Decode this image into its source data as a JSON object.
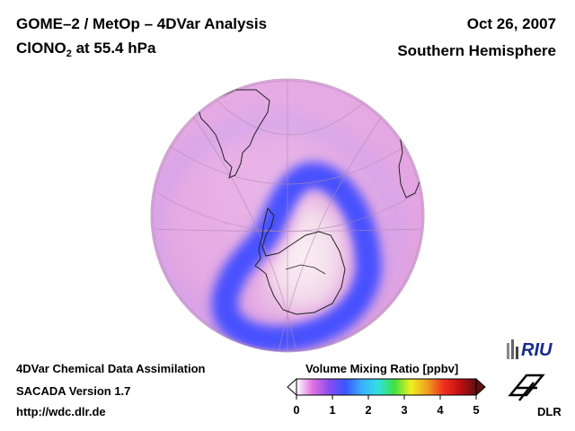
{
  "header": {
    "title_line1": "GOME–2 / MetOp – 4DVar Analysis",
    "species_main": "ClONO",
    "species_sub": "2",
    "species_rest": " at 55.4 hPa",
    "date": "Oct 26, 2007",
    "region": "Southern Hemisphere"
  },
  "footer": {
    "line1": "4DVar Chemical Data Assimilation",
    "line2": "SACADA Version 1.7",
    "line3": "http://wdc.dlr.de"
  },
  "colorbar": {
    "title": "Volume Mixing Ratio [ppbv]",
    "min": 0,
    "max": 5,
    "ticks": [
      "0",
      "1",
      "2",
      "3",
      "4",
      "5"
    ],
    "stops": [
      "#ffffff",
      "#e070e0",
      "#8a4cf0",
      "#3a55ff",
      "#3ab0ff",
      "#30e0e0",
      "#40e040",
      "#f0f020",
      "#f0a020",
      "#f03020",
      "#c01010",
      "#601010"
    ]
  },
  "logos": {
    "riu": "RIU",
    "dlr": "DLR"
  },
  "map_colors": {
    "background": "#e8b0e6",
    "ring": "#5a5cff",
    "core": "#f4e0ec",
    "coast": "#222222"
  }
}
